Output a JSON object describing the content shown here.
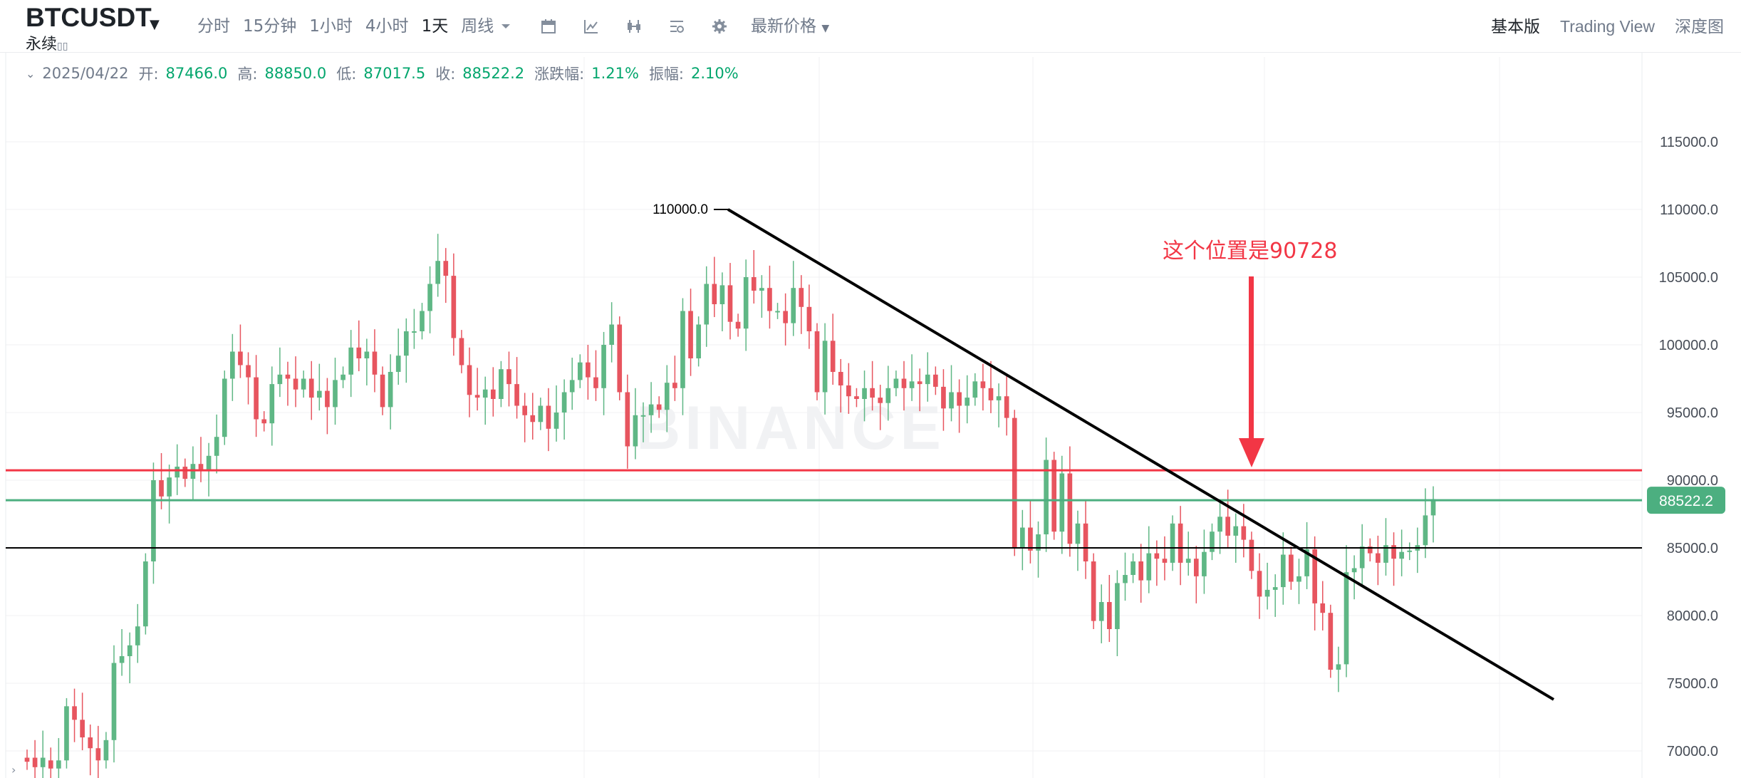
{
  "header": {
    "symbol": "BTCUSDT",
    "contract_type": "永续",
    "intervals": [
      "分时",
      "15分钟",
      "1小时",
      "4小时",
      "1天",
      "周线"
    ],
    "active_interval": "1天",
    "latest_price_label": "最新价格",
    "views": [
      "基本版",
      "Trading View",
      "深度图"
    ],
    "active_view": "基本版"
  },
  "ohlc": {
    "date": "2025/04/22",
    "open_label": "开:",
    "open": "87466.0",
    "high_label": "高:",
    "high": "88850.0",
    "low_label": "低:",
    "low": "87017.5",
    "close_label": "收:",
    "close": "88522.2",
    "change_label": "涨跌幅:",
    "change": "1.21%",
    "amp_label": "振幅:",
    "amp": "2.10%"
  },
  "chart_data": {
    "type": "candlestick",
    "watermark": "BINANCE",
    "y_axis_ticks": [
      "115000.0",
      "110000.0",
      "105000.0",
      "100000.0",
      "95000.0",
      "90000.0",
      "85000.0",
      "80000.0",
      "75000.0",
      "70000.0"
    ],
    "ylim": [
      69000,
      117000
    ],
    "last_price": "88522.2",
    "peak_label": "110000.0",
    "annotation": "这个位置是90728",
    "horizontal_lines": [
      {
        "price": 90728,
        "color": "#f23645"
      },
      {
        "price": 88522.2,
        "color": "#4caf80"
      },
      {
        "price": 85000,
        "color": "#000000"
      }
    ],
    "trendline": {
      "from_price": 110000,
      "to_price": 73800,
      "color": "#000000"
    },
    "candles_close": [
      69200,
      68800,
      69500,
      68700,
      69300,
      73300,
      72300,
      71000,
      70200,
      69300,
      70800,
      76500,
      77000,
      77800,
      79200,
      84000,
      90000,
      88800,
      90200,
      91000,
      90100,
      91200,
      90800,
      91800,
      93200,
      97500,
      99500,
      98500,
      97600,
      94500,
      94200,
      97100,
      97800,
      97500,
      96700,
      97500,
      96100,
      96600,
      95400,
      97400,
      97800,
      99800,
      99000,
      99500,
      97800,
      95400,
      98000,
      99200,
      101000,
      101000,
      102500,
      104500,
      106200,
      105100,
      100500,
      98500,
      96300,
      96100,
      96700,
      96000,
      98200,
      97100,
      95500,
      94800,
      94300,
      95500,
      93800,
      95000,
      96500,
      97400,
      98700,
      97600,
      96800,
      100000,
      101500,
      96500,
      92500,
      94800,
      94800,
      95600,
      95200,
      97200,
      96800,
      102500,
      99000,
      101500,
      104500,
      103000,
      104400,
      101700,
      101200,
      105000,
      104000,
      104200,
      102500,
      102500,
      101600,
      104200,
      102800,
      101000,
      96500,
      100300,
      98000,
      97000,
      96200,
      96000,
      96800,
      96100,
      95700,
      96800,
      97500,
      96800,
      97300,
      97100,
      97800,
      96900,
      95300,
      96500,
      95500,
      96100,
      97300,
      96800,
      95900,
      96200,
      94600,
      85000,
      86500,
      84800,
      86000,
      91500,
      86200,
      90500,
      85300,
      86800,
      84000,
      79600,
      81000,
      79000,
      82400,
      83000,
      84000,
      82600,
      84600,
      84200,
      83900,
      86800,
      83900,
      84200,
      82900,
      84700,
      86200,
      87300,
      85900,
      86600,
      85600,
      83300,
      81400,
      81900,
      82100,
      84500,
      82500,
      82900,
      84900,
      80900,
      80200,
      76000,
      76400,
      83200,
      83500,
      85100,
      84600,
      83900,
      85200,
      84200,
      84700,
      84800,
      85200,
      87400,
      88600
    ],
    "candles_open": [
      69500,
      69500,
      68800,
      69300,
      68700,
      69300,
      73300,
      72300,
      71000,
      70200,
      69300,
      70800,
      76500,
      77000,
      77800,
      79200,
      84000,
      90000,
      88800,
      90200,
      91000,
      90100,
      91200,
      90800,
      91800,
      93200,
      97500,
      99500,
      98500,
      97600,
      94500,
      94200,
      97100,
      97800,
      97500,
      96700,
      97500,
      96100,
      96600,
      95400,
      97400,
      97800,
      99800,
      99000,
      99500,
      97800,
      95400,
      98000,
      99200,
      101000,
      101000,
      102500,
      104500,
      106200,
      105100,
      100500,
      98500,
      96300,
      96100,
      96700,
      96000,
      98200,
      97100,
      95500,
      94800,
      94300,
      95500,
      93800,
      95000,
      96500,
      97400,
      98700,
      97600,
      96800,
      100000,
      101500,
      96500,
      92500,
      94800,
      94800,
      95600,
      95200,
      97200,
      96800,
      102500,
      99000,
      101500,
      104500,
      103000,
      104400,
      101700,
      101200,
      105000,
      104000,
      104200,
      102500,
      102500,
      101600,
      104200,
      102800,
      101000,
      96500,
      100300,
      98000,
      97000,
      96200,
      96000,
      96800,
      96100,
      95700,
      96800,
      97500,
      96800,
      97300,
      97100,
      97800,
      96900,
      95300,
      96500,
      95500,
      96100,
      97300,
      96800,
      95900,
      96200,
      94600,
      85000,
      86500,
      84800,
      86000,
      91500,
      86200,
      90500,
      85300,
      86800,
      84000,
      79600,
      81000,
      79000,
      82400,
      83000,
      84000,
      82600,
      84600,
      84200,
      83900,
      86800,
      83900,
      84200,
      82900,
      84700,
      86200,
      87300,
      85900,
      86600,
      85600,
      83300,
      81400,
      81900,
      82100,
      84500,
      82500,
      82900,
      84900,
      80900,
      80200,
      76000,
      76400,
      83200,
      83500,
      85100,
      84600,
      83900,
      85200,
      84200,
      84700,
      84800,
      85200,
      87400
    ]
  }
}
